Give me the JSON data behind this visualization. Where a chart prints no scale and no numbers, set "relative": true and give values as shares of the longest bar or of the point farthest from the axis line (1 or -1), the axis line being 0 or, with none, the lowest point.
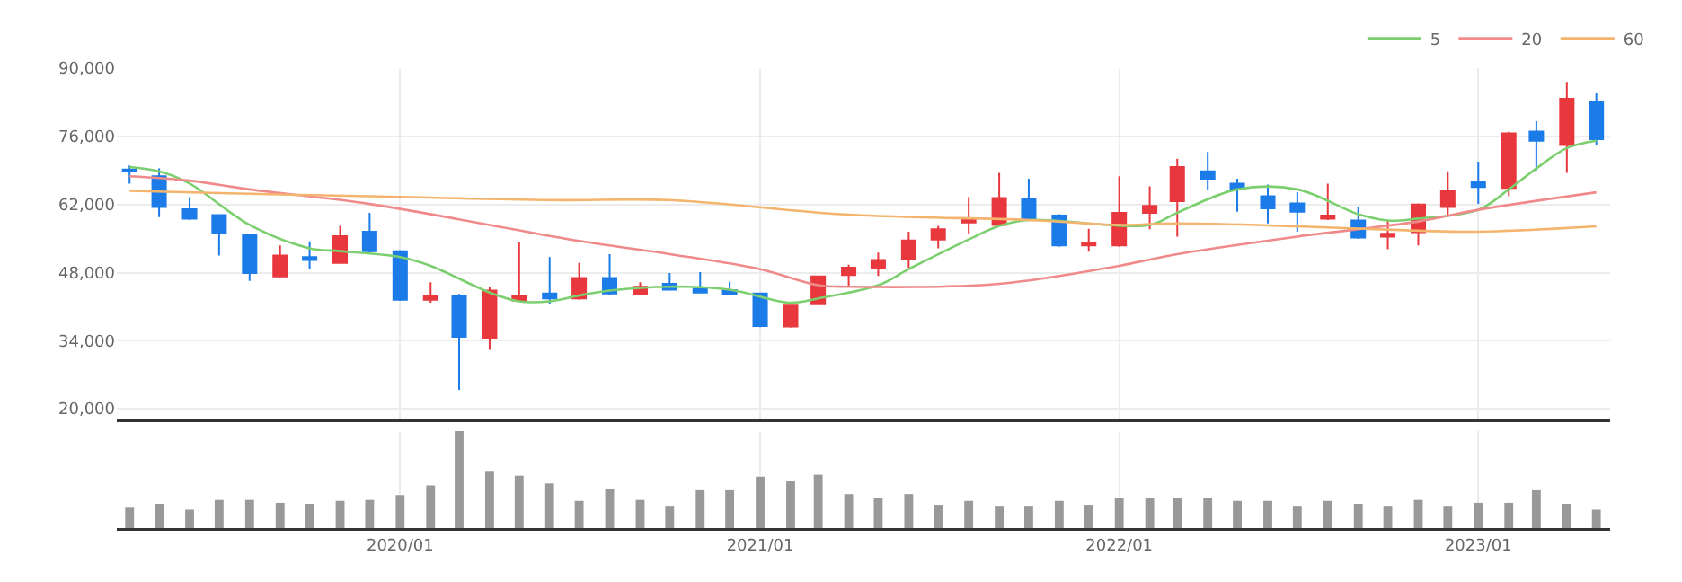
{
  "chart_data": [
    {
      "type": "candlestick",
      "x": [
        "2019-04",
        "2019-05",
        "2019-06",
        "2019-07",
        "2019-08",
        "2019-09",
        "2019-10",
        "2019-11",
        "2019-12",
        "2020-01",
        "2020-02",
        "2020-03",
        "2020-04",
        "2020-05",
        "2020-06",
        "2020-07",
        "2020-08",
        "2020-09",
        "2020-10",
        "2020-11",
        "2020-12",
        "2021-01",
        "2021-02",
        "2021-03",
        "2021-04",
        "2021-05",
        "2021-06",
        "2021-07",
        "2021-08",
        "2021-09",
        "2021-10",
        "2021-11",
        "2021-12",
        "2022-01",
        "2022-02",
        "2022-03",
        "2022-04",
        "2022-05",
        "2022-06",
        "2022-07",
        "2022-08",
        "2022-09",
        "2022-10",
        "2022-11",
        "2022-12",
        "2023-01",
        "2023-02",
        "2023-03",
        "2023-04",
        "2023-05"
      ],
      "ohlc": [
        [
          69200,
          70000,
          66300,
          68800
        ],
        [
          67800,
          69400,
          59400,
          61500
        ],
        [
          61000,
          63500,
          58800,
          59100
        ],
        [
          59800,
          60000,
          51500,
          56100
        ],
        [
          55800,
          56000,
          46300,
          47900
        ],
        [
          47200,
          53600,
          47000,
          51500
        ],
        [
          51200,
          54400,
          48700,
          50600
        ],
        [
          50000,
          57600,
          49800,
          55500
        ],
        [
          56400,
          60300,
          52000,
          52400
        ],
        [
          52400,
          52600,
          42200,
          42400
        ],
        [
          42400,
          46000,
          41800,
          43300
        ],
        [
          43300,
          43600,
          23900,
          34800
        ],
        [
          34600,
          45100,
          32100,
          44300
        ],
        [
          42300,
          54200,
          42000,
          43300
        ],
        [
          43700,
          51200,
          41500,
          42700
        ],
        [
          42700,
          50000,
          42400,
          46900
        ],
        [
          46900,
          51800,
          43400,
          43700
        ],
        [
          43500,
          46000,
          43300,
          45100
        ],
        [
          45700,
          47900,
          44300,
          44500
        ],
        [
          44700,
          48100,
          43700,
          43900
        ],
        [
          44400,
          46100,
          43300,
          43500
        ],
        [
          43700,
          43900,
          36800,
          37000
        ],
        [
          36900,
          41400,
          36700,
          41200
        ],
        [
          41500,
          47400,
          41300,
          47200
        ],
        [
          47500,
          49600,
          45100,
          49000
        ],
        [
          49000,
          52100,
          47300,
          50600
        ],
        [
          50800,
          56400,
          49000,
          54600
        ],
        [
          54800,
          57600,
          53000,
          56900
        ],
        [
          58300,
          63500,
          56000,
          59100
        ],
        [
          57800,
          68500,
          57600,
          63300
        ],
        [
          63100,
          67300,
          58800,
          59100
        ],
        [
          59700,
          60000,
          53300,
          53600
        ],
        [
          53600,
          57000,
          52300,
          54000
        ],
        [
          53600,
          67800,
          53300,
          60300
        ],
        [
          60300,
          65700,
          56900,
          61700
        ],
        [
          62700,
          71400,
          55400,
          69700
        ],
        [
          68800,
          72800,
          65100,
          67300
        ],
        [
          66300,
          67300,
          60500,
          65100
        ],
        [
          63700,
          66100,
          58100,
          61200
        ],
        [
          62200,
          64500,
          56400,
          60500
        ],
        [
          59100,
          66300,
          58800,
          59700
        ],
        [
          58700,
          61500,
          54900,
          55200
        ],
        [
          55400,
          58500,
          52800,
          56000
        ],
        [
          56300,
          62200,
          53600,
          62000
        ],
        [
          61500,
          68800,
          59700,
          64900
        ],
        [
          66600,
          70800,
          62100,
          65600
        ],
        [
          65400,
          77000,
          63700,
          76600
        ],
        [
          77000,
          79100,
          69000,
          75100
        ],
        [
          74200,
          87200,
          68500,
          83700
        ],
        [
          83000,
          84900,
          74200,
          75400
        ]
      ],
      "series": [
        {
          "name": "5",
          "type": "line",
          "color": "#7ccf6e",
          "x": [
            "2019-04",
            "2019-05",
            "2019-06",
            "2019-08",
            "2019-10",
            "2019-11",
            "2020-01",
            "2020-02",
            "2020-04",
            "2020-05",
            "2020-06",
            "2020-07",
            "2020-08",
            "2020-10",
            "2020-12",
            "2021-02",
            "2021-03",
            "2021-05",
            "2021-06",
            "2021-08",
            "2021-09",
            "2021-10",
            "2022-02",
            "2022-03",
            "2022-05",
            "2022-07",
            "2022-09",
            "2022-10",
            "2022-11",
            "2023-01",
            "2023-02",
            "2023-03",
            "2023-04",
            "2023-05"
          ],
          "values": [
            69700,
            68800,
            66300,
            57800,
            53000,
            52400,
            51200,
            49400,
            43900,
            42100,
            42100,
            43300,
            44300,
            45100,
            44500,
            41800,
            42700,
            45400,
            48700,
            54800,
            57600,
            58800,
            57800,
            60300,
            65100,
            65100,
            60000,
            58700,
            59100,
            60900,
            65100,
            69400,
            73600,
            75100
          ]
        },
        {
          "name": "20",
          "type": "line",
          "color": "#f08a8a",
          "x": [
            "2019-04",
            "2019-06",
            "2019-08",
            "2019-12",
            "2020-04",
            "2020-07",
            "2020-10",
            "2021-01",
            "2021-03",
            "2021-04",
            "2021-09",
            "2022-01",
            "2022-03",
            "2022-07",
            "2022-11",
            "2023-01",
            "2023-05"
          ],
          "values": [
            67800,
            66900,
            65100,
            62100,
            57800,
            54500,
            51800,
            48700,
            45400,
            45100,
            45700,
            49400,
            51800,
            55400,
            58500,
            60900,
            64500
          ]
        },
        {
          "name": "60",
          "type": "line",
          "color": "#f5b46e",
          "x": [
            "2019-04",
            "2019-08",
            "2019-12",
            "2020-06",
            "2020-10",
            "2021-04",
            "2021-10",
            "2022-01",
            "2022-03",
            "2022-07",
            "2022-11",
            "2023-01",
            "2023-05"
          ],
          "values": [
            64800,
            64200,
            63700,
            62900,
            62900,
            59900,
            58800,
            57800,
            58100,
            57500,
            56600,
            56400,
            57500
          ]
        }
      ],
      "xlim": [
        "2019-03-19",
        "2023-05-15"
      ],
      "xticks": [
        {
          "value": "2020-01",
          "label": null
        },
        {
          "value": "2021-01",
          "label": null
        },
        {
          "value": "2022-01",
          "label": null
        },
        {
          "value": "2023-01",
          "label": null
        }
      ],
      "ylim": [
        18000,
        90000
      ],
      "yticks": [
        {
          "value": 20000,
          "label": "20,000"
        },
        {
          "value": 34000,
          "label": "34,000"
        },
        {
          "value": 48000,
          "label": "48,000"
        },
        {
          "value": 62000,
          "label": "62,000"
        },
        {
          "value": 76000,
          "label": "76,000"
        },
        {
          "value": 90000,
          "label": "90,000"
        }
      ],
      "tick_labels": "y",
      "grid": true,
      "legend": "top right"
    },
    {
      "type": "bar",
      "relative": true,
      "color": "#999999",
      "x": [
        "2019-04",
        "2019-05",
        "2019-06",
        "2019-07",
        "2019-08",
        "2019-09",
        "2019-10",
        "2019-11",
        "2019-12",
        "2020-01",
        "2020-02",
        "2020-03",
        "2020-04",
        "2020-05",
        "2020-06",
        "2020-07",
        "2020-08",
        "2020-09",
        "2020-10",
        "2020-11",
        "2020-12",
        "2021-01",
        "2021-02",
        "2021-03",
        "2021-04",
        "2021-05",
        "2021-06",
        "2021-07",
        "2021-08",
        "2021-09",
        "2021-10",
        "2021-11",
        "2021-12",
        "2022-01",
        "2022-02",
        "2022-03",
        "2022-04",
        "2022-05",
        "2022-06",
        "2022-07",
        "2022-08",
        "2022-09",
        "2022-10",
        "2022-11",
        "2022-12",
        "2023-01",
        "2023-02",
        "2023-03",
        "2023-04",
        "2023-05"
      ],
      "values": [
        0.21,
        0.25,
        0.19,
        0.29,
        0.29,
        0.26,
        0.25,
        0.28,
        0.29,
        0.34,
        0.44,
        1,
        0.59,
        0.54,
        0.46,
        0.28,
        0.4,
        0.29,
        0.23,
        0.39,
        0.39,
        0.53,
        0.49,
        0.55,
        0.35,
        0.31,
        0.35,
        0.24,
        0.28,
        0.23,
        0.23,
        0.28,
        0.24,
        0.31,
        0.31,
        0.31,
        0.31,
        0.28,
        0.28,
        0.23,
        0.28,
        0.25,
        0.23,
        0.29,
        0.23,
        0.26,
        0.26,
        0.39,
        0.25,
        0.19
      ],
      "xlim": [
        "2019-03-19",
        "2023-05-15"
      ],
      "xticks": [
        {
          "value": "2020-01",
          "label": "2020/01"
        },
        {
          "value": "2021-01",
          "label": "2021/01"
        },
        {
          "value": "2022-01",
          "label": "2022/01"
        },
        {
          "value": "2023-01",
          "label": "2023/01"
        }
      ],
      "tick_labels": "x",
      "grid": "x"
    }
  ]
}
